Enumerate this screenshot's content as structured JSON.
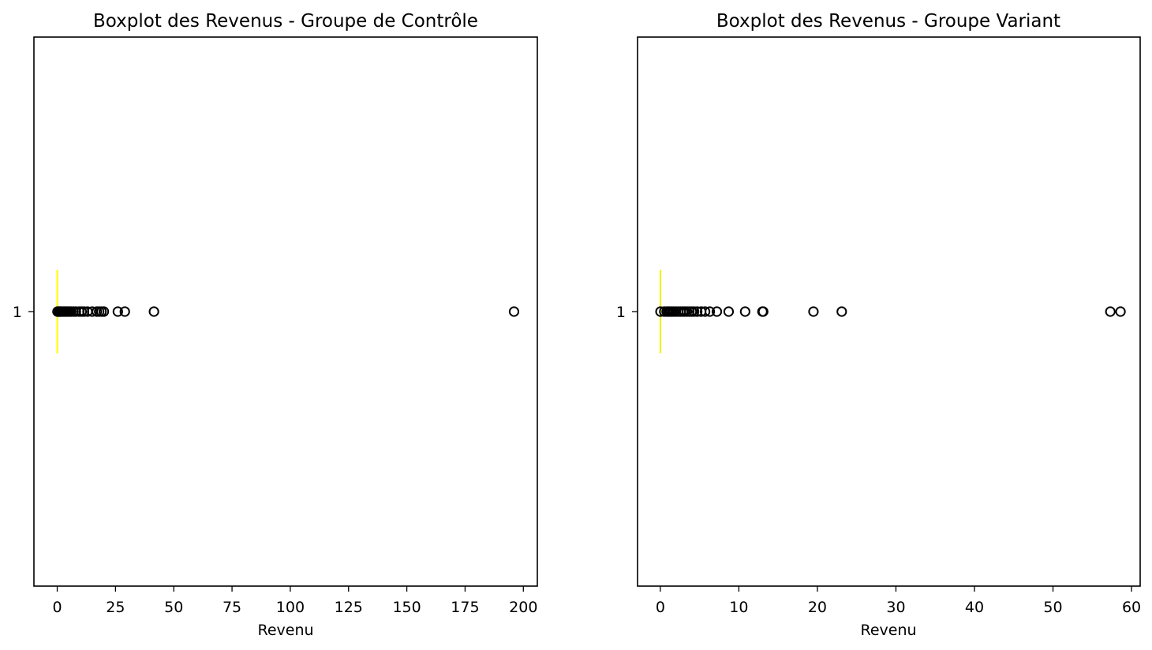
{
  "chart_data": [
    {
      "type": "boxplot",
      "orientation": "horizontal",
      "title": "Boxplot des Revenus - Groupe de Contrôle",
      "xlabel": "Revenu",
      "ylabel": "",
      "xlim": [
        -10,
        206
      ],
      "xticks": [
        0,
        25,
        50,
        75,
        100,
        125,
        150,
        175,
        200
      ],
      "yticks": [
        "1"
      ],
      "grid": false,
      "box": {
        "category": "1",
        "min": 0,
        "q1": 0,
        "median": 0,
        "q3": 0,
        "max": 0
      },
      "median_color": "#ffff00",
      "outliers": [
        0.1,
        0.3,
        0.5,
        0.8,
        1.0,
        1.3,
        1.6,
        2.0,
        2.4,
        2.8,
        3.2,
        3.6,
        4.0,
        4.5,
        5.0,
        5.5,
        6.0,
        7.0,
        8.0,
        9.5,
        10.5,
        11.5,
        13.0,
        15.0,
        17.0,
        18.0,
        19.0,
        20.0,
        26.0,
        29.0,
        41.5,
        196.0
      ]
    },
    {
      "type": "boxplot",
      "orientation": "horizontal",
      "title": "Boxplot des Revenus - Groupe Variant",
      "xlabel": "Revenu",
      "ylabel": "",
      "xlim": [
        -2.9,
        61.1
      ],
      "xticks": [
        0,
        10,
        20,
        30,
        40,
        50,
        60
      ],
      "yticks": [
        "1"
      ],
      "grid": false,
      "box": {
        "category": "1",
        "min": 0,
        "q1": 0,
        "median": 0,
        "q3": 0,
        "max": 0
      },
      "median_color": "#ffff00",
      "outliers": [
        0.02,
        0.5,
        0.8,
        1.0,
        1.1,
        1.3,
        1.5,
        1.7,
        2.0,
        2.3,
        2.6,
        2.9,
        3.1,
        3.4,
        3.7,
        4.0,
        4.3,
        4.7,
        5.2,
        5.7,
        6.3,
        7.2,
        8.7,
        10.8,
        13.0,
        13.1,
        19.5,
        23.1,
        57.3,
        58.6
      ]
    }
  ]
}
